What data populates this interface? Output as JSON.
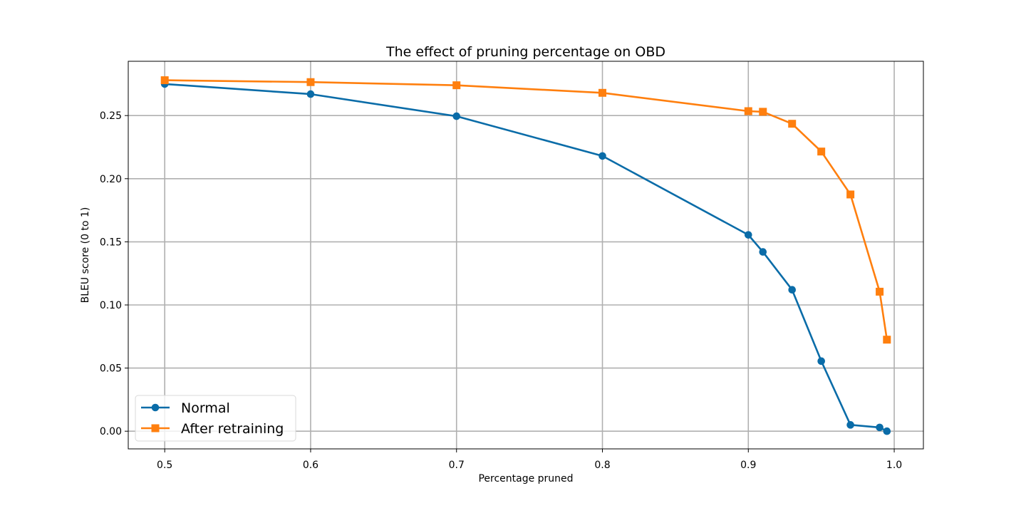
{
  "chart_data": {
    "type": "line",
    "title": "The effect of pruning percentage on OBD",
    "xlabel": "Percentage pruned",
    "ylabel": "BLEU score (0 to 1)",
    "xlim": [
      0.475,
      1.02
    ],
    "ylim": [
      -0.014,
      0.293
    ],
    "xticks": [
      0.5,
      0.6,
      0.7,
      0.8,
      0.9,
      1.0
    ],
    "xtick_labels": [
      "0.5",
      "0.6",
      "0.7",
      "0.8",
      "0.9",
      "1.0"
    ],
    "yticks": [
      0.0,
      0.05,
      0.1,
      0.15,
      0.2,
      0.25
    ],
    "ytick_labels": [
      "0.00",
      "0.05",
      "0.10",
      "0.15",
      "0.20",
      "0.25"
    ],
    "grid": true,
    "legend_position": "lower-left",
    "series": [
      {
        "name": "Normal",
        "color": "#0a6ca8",
        "marker": "circle",
        "x": [
          0.5,
          0.6,
          0.7,
          0.8,
          0.9,
          0.91,
          0.93,
          0.95,
          0.97,
          0.99,
          0.995
        ],
        "y": [
          0.275,
          0.267,
          0.2495,
          0.218,
          0.1555,
          0.142,
          0.112,
          0.0555,
          0.005,
          0.003,
          0.0
        ]
      },
      {
        "name": "After retraining",
        "color": "#ff7f0e",
        "marker": "square",
        "x": [
          0.5,
          0.6,
          0.7,
          0.8,
          0.9,
          0.91,
          0.93,
          0.95,
          0.97,
          0.99,
          0.995
        ],
        "y": [
          0.278,
          0.2765,
          0.274,
          0.268,
          0.2535,
          0.253,
          0.2435,
          0.2215,
          0.1875,
          0.1105,
          0.0725
        ]
      }
    ]
  }
}
